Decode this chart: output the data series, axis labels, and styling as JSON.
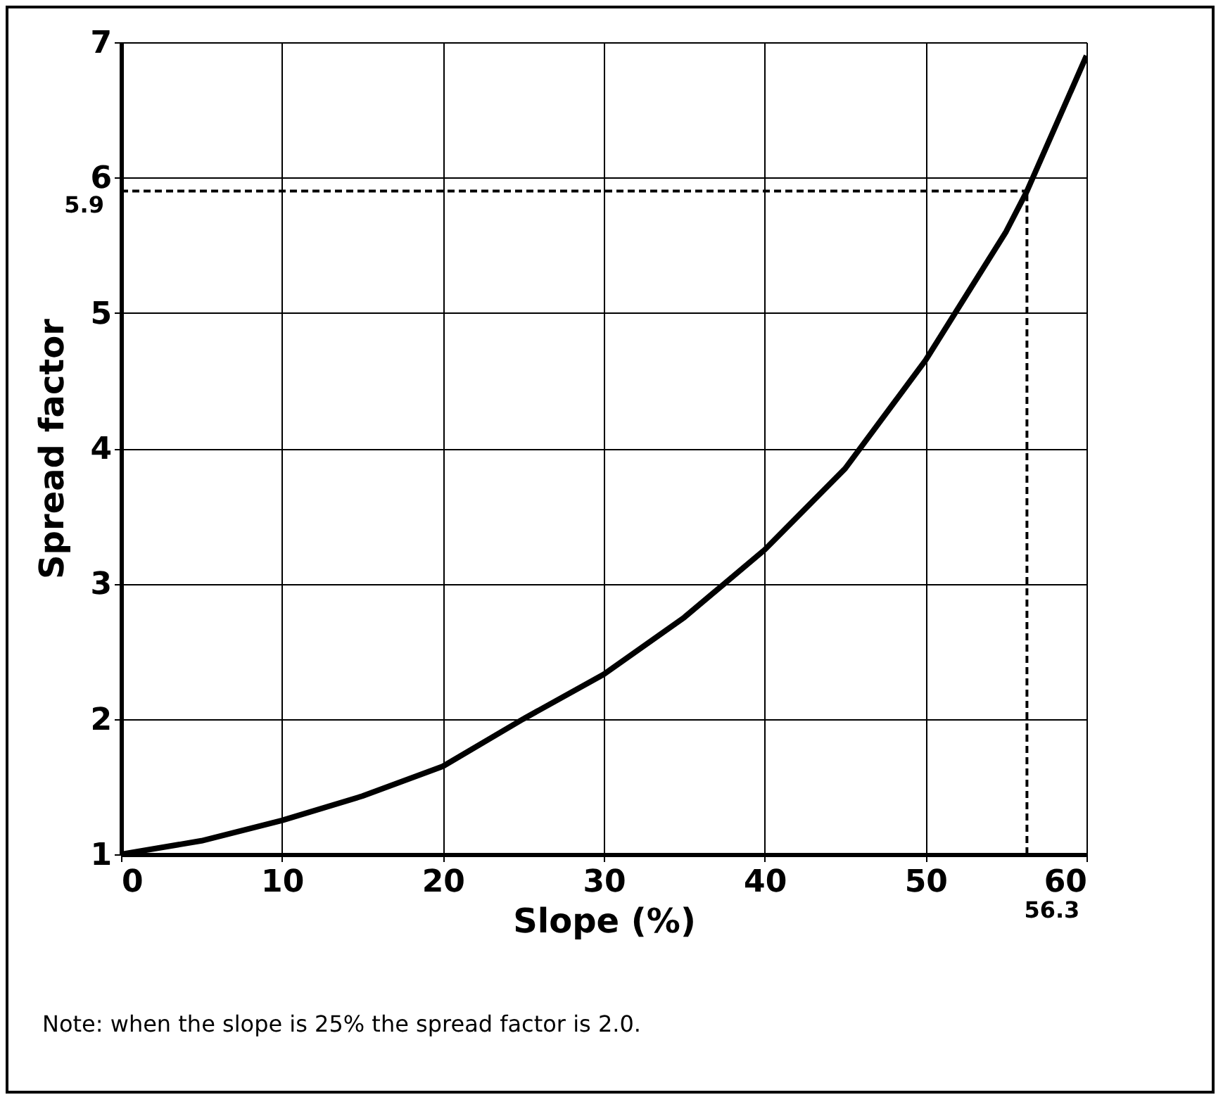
{
  "chart_data": {
    "type": "line",
    "xlabel": "Slope (%)",
    "ylabel": "Spread factor",
    "annotations": [
      "Note: when the slope is 25% the spread factor is 2.0."
    ],
    "x": [
      0,
      5,
      10,
      15,
      20,
      25,
      30,
      35,
      40,
      45,
      50,
      55,
      56.3,
      60
    ],
    "series": [
      {
        "color": "#000000",
        "values": [
          1.0,
          1.1,
          1.25,
          1.43,
          1.65,
          2.0,
          2.33,
          2.75,
          3.25,
          3.85,
          4.65,
          5.6,
          5.9,
          6.9
        ]
      }
    ],
    "xlim": [
      0,
      60
    ],
    "xticks": [
      0,
      10,
      20,
      30,
      40,
      50,
      60
    ],
    "ylim": [
      1,
      7
    ],
    "yticks": [
      1,
      2,
      3,
      4,
      5,
      6,
      7
    ],
    "grid": true,
    "marker": "none",
    "line_style": "solid",
    "ref_lines": [
      {
        "axis": "y",
        "value": 5.9,
        "label": "5.9",
        "line_style": "dashed"
      },
      {
        "axis": "x",
        "value": 56.3,
        "label": "56.3",
        "line_style": "dashed"
      }
    ]
  }
}
